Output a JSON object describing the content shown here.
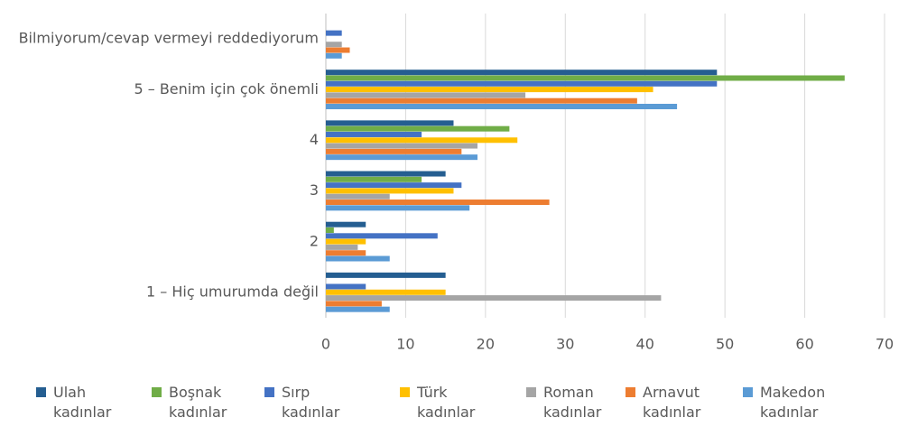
{
  "chart_data": {
    "type": "hbar",
    "categories": [
      "Bilmiyorum/cevap vermeyi reddediyorum",
      "5 – Benim için çok önemli",
      "4",
      "3",
      "2",
      "1 – Hiç umurumda değil"
    ],
    "series": [
      {
        "name": "Ulah kadınlar",
        "color": "#255e91",
        "values": [
          0,
          49,
          16,
          15,
          5,
          15
        ]
      },
      {
        "name": "Boşnak kadınlar",
        "color": "#70ad47",
        "values": [
          0,
          65,
          23,
          12,
          1,
          0
        ]
      },
      {
        "name": "Sırp kadınlar",
        "color": "#4472c4",
        "values": [
          2,
          49,
          12,
          17,
          14,
          5
        ]
      },
      {
        "name": "Türk kadınlar",
        "color": "#ffc000",
        "values": [
          0,
          41,
          24,
          16,
          5,
          15
        ]
      },
      {
        "name": "Roman kadınlar",
        "color": "#a5a5a5",
        "values": [
          2,
          25,
          19,
          8,
          4,
          42
        ]
      },
      {
        "name": "Arnavut kadınlar",
        "color": "#ed7d31",
        "values": [
          3,
          39,
          17,
          28,
          5,
          7
        ]
      },
      {
        "name": "Makedon kadınlar",
        "color": "#5b9bd5",
        "values": [
          2,
          44,
          19,
          18,
          8,
          8
        ]
      }
    ],
    "xlim": [
      0,
      70
    ],
    "xticks": [
      0,
      10,
      20,
      30,
      40,
      50,
      60,
      70
    ],
    "grid": true,
    "legend": "bottom"
  }
}
